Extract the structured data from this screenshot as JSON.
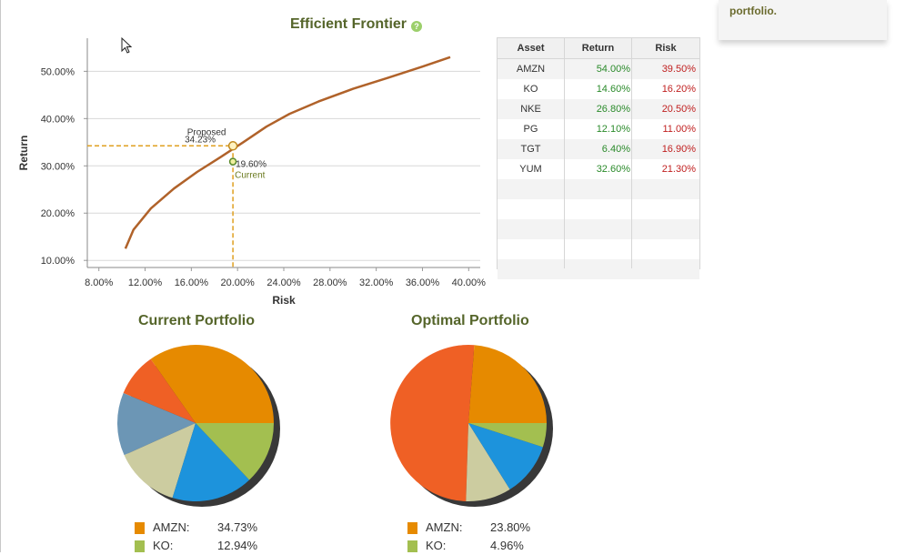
{
  "right_panel": {
    "text": "portfolio."
  },
  "frontier": {
    "title": "Efficient Frontier",
    "help_icon": "help-icon"
  },
  "chart_data": [
    {
      "type": "line",
      "title": "Efficient Frontier",
      "xlabel": "Risk",
      "ylabel": "Return",
      "xlim": [
        7.0,
        41.0
      ],
      "ylim": [
        8.5,
        57.0
      ],
      "xticks": [
        "8.00%",
        "12.00%",
        "16.00%",
        "20.00%",
        "24.00%",
        "28.00%",
        "32.00%",
        "36.00%",
        "40.00%"
      ],
      "yticks": [
        "10.00%",
        "20.00%",
        "30.00%",
        "40.00%",
        "50.00%"
      ],
      "grid": true,
      "series": [
        {
          "x": [
            10.3,
            11.0,
            12.5,
            14.5,
            16.5,
            18.5,
            20.5,
            22.5,
            24.5,
            27.0,
            30.0,
            33.0,
            36.0,
            38.4
          ],
          "y": [
            12.5,
            16.5,
            21.0,
            25.2,
            28.7,
            31.8,
            35.0,
            38.3,
            41.0,
            43.6,
            46.3,
            48.6,
            51.0,
            53.0
          ]
        }
      ],
      "points": [
        {
          "label": "Proposed",
          "value_label": "34.23%",
          "x": 19.6,
          "y": 34.23
        },
        {
          "label": "Current",
          "value_label": "19.60%",
          "x": 19.6,
          "y": 30.9
        }
      ]
    },
    {
      "type": "pie",
      "title": "Current Portfolio",
      "slices": [
        {
          "name": "AMZN",
          "value": 34.73,
          "color": "#e68a00"
        },
        {
          "name": "",
          "value": 9.0,
          "color": "#ef6025"
        },
        {
          "name": "",
          "value": 13.0,
          "color": "#6c96b5"
        },
        {
          "name": "",
          "value": 13.5,
          "color": "#cccca0"
        },
        {
          "name": "",
          "value": 16.83,
          "color": "#1d93dc"
        },
        {
          "name": "KO",
          "value": 12.94,
          "color": "#a3bf50"
        }
      ]
    },
    {
      "type": "pie",
      "title": "Optimal Portfolio",
      "slices": [
        {
          "name": "AMZN",
          "value": 23.8,
          "color": "#e68a00"
        },
        {
          "name": "",
          "value": 50.7,
          "color": "#ef6025"
        },
        {
          "name": "",
          "value": 9.4,
          "color": "#cccca0"
        },
        {
          "name": "",
          "value": 11.14,
          "color": "#1d93dc"
        },
        {
          "name": "KO",
          "value": 4.96,
          "color": "#a3bf50"
        }
      ]
    }
  ],
  "table": {
    "headers": [
      "Asset",
      "Return",
      "Risk"
    ],
    "rows": [
      {
        "asset": "AMZN",
        "ret": "54.00%",
        "risk": "39.50%"
      },
      {
        "asset": "KO",
        "ret": "14.60%",
        "risk": "16.20%"
      },
      {
        "asset": "NKE",
        "ret": "26.80%",
        "risk": "20.50%"
      },
      {
        "asset": "PG",
        "ret": "12.10%",
        "risk": "11.00%"
      },
      {
        "asset": "TGT",
        "ret": "6.40%",
        "risk": "16.90%"
      },
      {
        "asset": "YUM",
        "ret": "32.60%",
        "risk": "21.30%"
      }
    ]
  },
  "current_portfolio": {
    "title": "Current Portfolio",
    "legend": [
      {
        "name": "AMZN:",
        "value": "34.73%",
        "color": "#e68a00"
      },
      {
        "name": "KO:",
        "value": "12.94%",
        "color": "#a3bf50"
      }
    ]
  },
  "optimal_portfolio": {
    "title": "Optimal Portfolio",
    "legend": [
      {
        "name": "AMZN:",
        "value": "23.80%",
        "color": "#e68a00"
      },
      {
        "name": "KO:",
        "value": "4.96%",
        "color": "#a3bf50"
      }
    ]
  }
}
